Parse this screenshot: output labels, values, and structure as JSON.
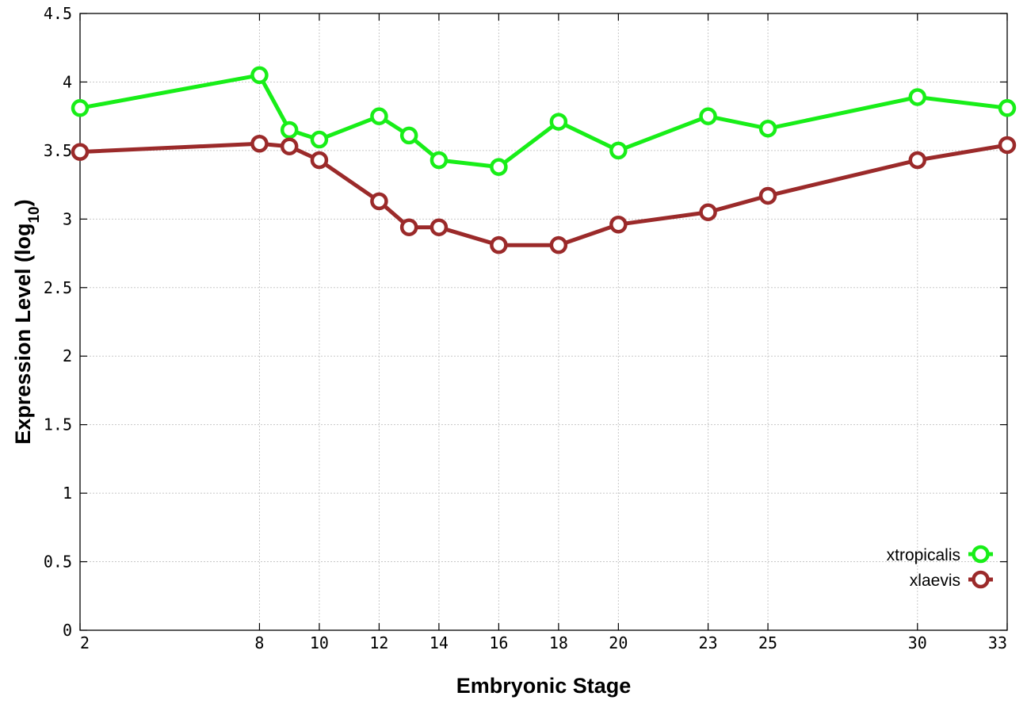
{
  "chart_data": {
    "type": "line",
    "title": "",
    "xlabel": "Embryonic Stage",
    "ylabel_main": "Expression Level (log",
    "ylabel_sub": "10",
    "ylabel_close": ")",
    "x": [
      2,
      8,
      9,
      10,
      12,
      13,
      14,
      16,
      18,
      20,
      23,
      25,
      30,
      33
    ],
    "x_ticks": [
      "2",
      "8",
      "10",
      "12",
      "14",
      "16",
      "18",
      "20",
      "23",
      "25",
      "30",
      "33"
    ],
    "y_ticks": [
      "0",
      "0.5",
      "1",
      "1.5",
      "2",
      "2.5",
      "3",
      "3.5",
      "4",
      "4.5"
    ],
    "ylim": [
      0,
      4.5
    ],
    "grid": true,
    "legend_position": "bottom-right",
    "series": [
      {
        "name": "xtropicalis",
        "color": "#18ee18",
        "values": [
          3.81,
          4.05,
          3.65,
          3.58,
          3.75,
          3.61,
          3.43,
          3.38,
          3.71,
          3.5,
          3.75,
          3.66,
          3.89,
          3.81
        ]
      },
      {
        "name": "xlaevis",
        "color": "#9b2a2a",
        "values": [
          3.49,
          3.55,
          3.53,
          3.43,
          3.13,
          2.94,
          2.94,
          2.81,
          2.81,
          2.96,
          3.05,
          3.17,
          3.43,
          3.54
        ]
      }
    ]
  }
}
